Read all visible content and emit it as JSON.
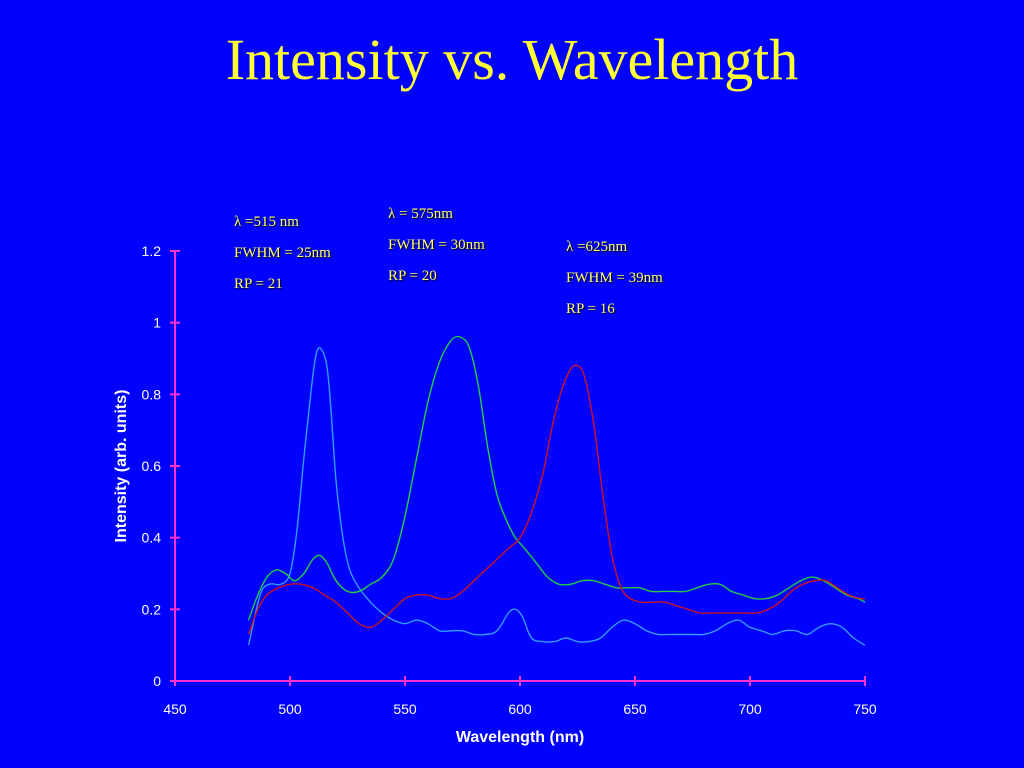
{
  "slide": {
    "title": "Intensity vs. Wavelength"
  },
  "colors": {
    "background": "#0000FF",
    "axis": "#FF33CC",
    "title": "#FFFF33",
    "annotation": "#FFFF66"
  },
  "annotations": [
    {
      "lines": [
        "λ =515 nm",
        "FWHM = 25nm",
        "RP = 21"
      ]
    },
    {
      "lines": [
        "λ = 575nm",
        "FWHM = 30nm",
        "RP = 20"
      ]
    },
    {
      "lines": [
        "λ =625nm",
        "FWHM = 39nm",
        "RP = 16"
      ]
    }
  ],
  "chart_data": {
    "type": "line",
    "title": "",
    "xlabel": "Wavelength (nm)",
    "ylabel": "Intensity (arb. units)",
    "xlim": [
      450,
      750
    ],
    "ylim": [
      0,
      1.2
    ],
    "xticks": [
      450,
      500,
      550,
      600,
      650,
      700,
      750
    ],
    "yticks": [
      0,
      0.2,
      0.4,
      0.6,
      0.8,
      1,
      1.2
    ],
    "ytick_labels": [
      "0",
      "0.2",
      "0.4",
      "0.6",
      "0.8",
      "1",
      "1.2"
    ],
    "grid": false,
    "series": [
      {
        "color": "#3399FF",
        "points": [
          [
            482,
            0.1
          ],
          [
            487,
            0.24
          ],
          [
            491,
            0.27
          ],
          [
            496,
            0.27
          ],
          [
            500,
            0.3
          ],
          [
            503,
            0.42
          ],
          [
            506,
            0.62
          ],
          [
            509,
            0.8
          ],
          [
            511,
            0.9
          ],
          [
            513,
            0.93
          ],
          [
            516,
            0.88
          ],
          [
            518,
            0.74
          ],
          [
            520,
            0.56
          ],
          [
            523,
            0.4
          ],
          [
            526,
            0.31
          ],
          [
            530,
            0.26
          ],
          [
            535,
            0.22
          ],
          [
            540,
            0.19
          ],
          [
            545,
            0.17
          ],
          [
            550,
            0.16
          ],
          [
            555,
            0.17
          ],
          [
            560,
            0.16
          ],
          [
            565,
            0.14
          ],
          [
            570,
            0.14
          ],
          [
            575,
            0.14
          ],
          [
            580,
            0.13
          ],
          [
            585,
            0.13
          ],
          [
            590,
            0.14
          ],
          [
            595,
            0.19
          ],
          [
            598,
            0.2
          ],
          [
            601,
            0.18
          ],
          [
            605,
            0.12
          ],
          [
            610,
            0.11
          ],
          [
            615,
            0.11
          ],
          [
            620,
            0.12
          ],
          [
            625,
            0.11
          ],
          [
            630,
            0.11
          ],
          [
            635,
            0.12
          ],
          [
            640,
            0.15
          ],
          [
            645,
            0.17
          ],
          [
            650,
            0.16
          ],
          [
            655,
            0.14
          ],
          [
            660,
            0.13
          ],
          [
            665,
            0.13
          ],
          [
            670,
            0.13
          ],
          [
            675,
            0.13
          ],
          [
            680,
            0.13
          ],
          [
            685,
            0.14
          ],
          [
            690,
            0.16
          ],
          [
            695,
            0.17
          ],
          [
            700,
            0.15
          ],
          [
            705,
            0.14
          ],
          [
            710,
            0.13
          ],
          [
            715,
            0.14
          ],
          [
            720,
            0.14
          ],
          [
            725,
            0.13
          ],
          [
            730,
            0.15
          ],
          [
            735,
            0.16
          ],
          [
            740,
            0.15
          ],
          [
            745,
            0.12
          ],
          [
            750,
            0.1
          ]
        ]
      },
      {
        "color": "#22CC44",
        "points": [
          [
            482,
            0.17
          ],
          [
            486,
            0.24
          ],
          [
            490,
            0.29
          ],
          [
            494,
            0.31
          ],
          [
            498,
            0.3
          ],
          [
            502,
            0.28
          ],
          [
            506,
            0.3
          ],
          [
            510,
            0.34
          ],
          [
            513,
            0.35
          ],
          [
            516,
            0.33
          ],
          [
            520,
            0.28
          ],
          [
            525,
            0.25
          ],
          [
            530,
            0.25
          ],
          [
            535,
            0.27
          ],
          [
            540,
            0.29
          ],
          [
            545,
            0.34
          ],
          [
            550,
            0.46
          ],
          [
            555,
            0.62
          ],
          [
            560,
            0.78
          ],
          [
            565,
            0.89
          ],
          [
            570,
            0.95
          ],
          [
            574,
            0.96
          ],
          [
            578,
            0.93
          ],
          [
            582,
            0.82
          ],
          [
            586,
            0.65
          ],
          [
            590,
            0.52
          ],
          [
            594,
            0.45
          ],
          [
            598,
            0.4
          ],
          [
            602,
            0.37
          ],
          [
            607,
            0.33
          ],
          [
            612,
            0.29
          ],
          [
            617,
            0.27
          ],
          [
            622,
            0.27
          ],
          [
            627,
            0.28
          ],
          [
            632,
            0.28
          ],
          [
            637,
            0.27
          ],
          [
            642,
            0.26
          ],
          [
            647,
            0.26
          ],
          [
            652,
            0.26
          ],
          [
            657,
            0.25
          ],
          [
            662,
            0.25
          ],
          [
            667,
            0.25
          ],
          [
            672,
            0.25
          ],
          [
            677,
            0.26
          ],
          [
            682,
            0.27
          ],
          [
            687,
            0.27
          ],
          [
            692,
            0.25
          ],
          [
            697,
            0.24
          ],
          [
            702,
            0.23
          ],
          [
            707,
            0.23
          ],
          [
            712,
            0.24
          ],
          [
            717,
            0.26
          ],
          [
            722,
            0.28
          ],
          [
            727,
            0.29
          ],
          [
            732,
            0.28
          ],
          [
            737,
            0.26
          ],
          [
            742,
            0.24
          ],
          [
            747,
            0.23
          ],
          [
            750,
            0.22
          ]
        ]
      },
      {
        "color": "#CC1122",
        "points": [
          [
            482,
            0.13
          ],
          [
            486,
            0.2
          ],
          [
            490,
            0.24
          ],
          [
            495,
            0.26
          ],
          [
            500,
            0.27
          ],
          [
            505,
            0.27
          ],
          [
            510,
            0.26
          ],
          [
            515,
            0.24
          ],
          [
            520,
            0.22
          ],
          [
            525,
            0.19
          ],
          [
            530,
            0.16
          ],
          [
            535,
            0.15
          ],
          [
            540,
            0.17
          ],
          [
            545,
            0.2
          ],
          [
            550,
            0.23
          ],
          [
            555,
            0.24
          ],
          [
            560,
            0.24
          ],
          [
            565,
            0.23
          ],
          [
            570,
            0.23
          ],
          [
            575,
            0.25
          ],
          [
            580,
            0.28
          ],
          [
            585,
            0.31
          ],
          [
            590,
            0.34
          ],
          [
            595,
            0.37
          ],
          [
            600,
            0.4
          ],
          [
            605,
            0.47
          ],
          [
            610,
            0.58
          ],
          [
            614,
            0.71
          ],
          [
            618,
            0.81
          ],
          [
            622,
            0.87
          ],
          [
            625,
            0.88
          ],
          [
            628,
            0.85
          ],
          [
            632,
            0.72
          ],
          [
            636,
            0.52
          ],
          [
            640,
            0.35
          ],
          [
            644,
            0.26
          ],
          [
            648,
            0.23
          ],
          [
            653,
            0.22
          ],
          [
            658,
            0.22
          ],
          [
            663,
            0.22
          ],
          [
            668,
            0.21
          ],
          [
            673,
            0.2
          ],
          [
            678,
            0.19
          ],
          [
            683,
            0.19
          ],
          [
            688,
            0.19
          ],
          [
            693,
            0.19
          ],
          [
            698,
            0.19
          ],
          [
            703,
            0.19
          ],
          [
            708,
            0.2
          ],
          [
            713,
            0.22
          ],
          [
            718,
            0.25
          ],
          [
            723,
            0.27
          ],
          [
            728,
            0.28
          ],
          [
            733,
            0.28
          ],
          [
            738,
            0.26
          ],
          [
            743,
            0.24
          ],
          [
            748,
            0.23
          ],
          [
            750,
            0.23
          ]
        ]
      }
    ]
  }
}
